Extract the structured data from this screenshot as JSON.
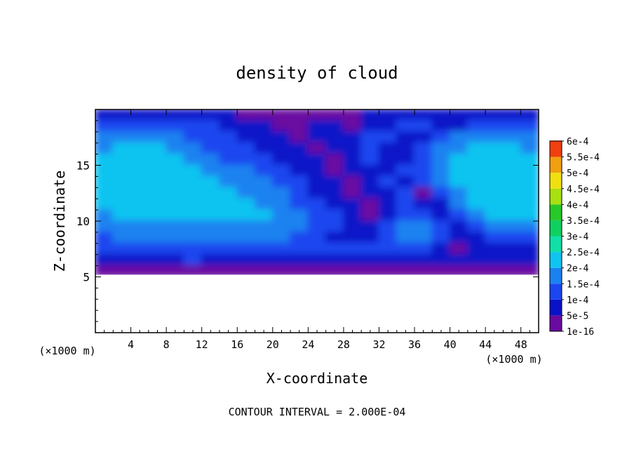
{
  "chart_data": {
    "type": "heatmap",
    "title": "density of cloud",
    "xlabel": "X-coordinate",
    "ylabel": "Z-coordinate",
    "x_unit": "(×1000 m)",
    "y_unit": "(×1000 m)",
    "xlim": [
      0,
      50
    ],
    "ylim": [
      0,
      20
    ],
    "x_ticks": [
      4,
      8,
      12,
      16,
      20,
      24,
      28,
      32,
      36,
      40,
      44,
      48
    ],
    "y_ticks": [
      5,
      10,
      15
    ],
    "footer": "CONTOUR INTERVAL = 2.000E-04",
    "colorbar": {
      "levels": [
        "1e-16",
        "5e-5",
        "1e-4",
        "1.5e-4",
        "2e-4",
        "2.5e-4",
        "3e-4",
        "3.5e-4",
        "4e-4",
        "4.5e-4",
        "5e-4",
        "5.5e-4",
        "6e-4"
      ],
      "colors": [
        "#6a0aa0",
        "#0a12c8",
        "#1a46f0",
        "#1a82f0",
        "#10c4f0",
        "#10e0a8",
        "#10d060",
        "#28c828",
        "#a8e010",
        "#f0e010",
        "#f0a010",
        "#f04010",
        "#f09090"
      ]
    },
    "field": {
      "x_range": [
        0,
        50
      ],
      "z_range": [
        5,
        20
      ],
      "cloud_base_km": 5.2,
      "dominant_levels": [
        "1e-16",
        "5e-5",
        "1e-4",
        "1.5e-4",
        "2e-4"
      ],
      "peak_level": "2e-4",
      "rows": [
        {
          "z": 19.5,
          "values": [
            1,
            1,
            1,
            1,
            1,
            1,
            1,
            1,
            0,
            0,
            0,
            0,
            0,
            0,
            0,
            1,
            1,
            1,
            1,
            1,
            1,
            1,
            1,
            1,
            1
          ]
        },
        {
          "z": 18.5,
          "values": [
            2,
            2,
            2,
            2,
            2,
            2,
            2,
            1,
            1,
            1,
            0,
            0,
            1,
            1,
            0,
            1,
            1,
            2,
            2,
            1,
            1,
            2,
            2,
            2,
            2
          ]
        },
        {
          "z": 17.5,
          "values": [
            3,
            3,
            3,
            3,
            3,
            2,
            2,
            2,
            1,
            1,
            1,
            0,
            1,
            1,
            1,
            2,
            2,
            1,
            1,
            2,
            3,
            3,
            3,
            3,
            3
          ]
        },
        {
          "z": 16.5,
          "values": [
            3,
            4,
            4,
            4,
            3,
            3,
            2,
            2,
            2,
            1,
            1,
            1,
            0,
            1,
            1,
            2,
            1,
            1,
            2,
            3,
            3,
            4,
            4,
            4,
            3
          ]
        },
        {
          "z": 15.5,
          "values": [
            4,
            4,
            4,
            4,
            4,
            3,
            3,
            2,
            2,
            2,
            1,
            1,
            1,
            0,
            1,
            2,
            1,
            1,
            2,
            3,
            4,
            4,
            4,
            4,
            4
          ]
        },
        {
          "z": 14.5,
          "values": [
            4,
            4,
            4,
            4,
            4,
            4,
            3,
            3,
            3,
            2,
            2,
            1,
            1,
            0,
            1,
            1,
            1,
            2,
            2,
            3,
            4,
            4,
            4,
            4,
            4
          ]
        },
        {
          "z": 13.5,
          "values": [
            4,
            4,
            4,
            4,
            4,
            4,
            4,
            3,
            3,
            3,
            2,
            2,
            1,
            1,
            0,
            1,
            2,
            1,
            2,
            3,
            4,
            4,
            4,
            4,
            4
          ]
        },
        {
          "z": 12.5,
          "values": [
            4,
            4,
            4,
            4,
            4,
            4,
            4,
            4,
            3,
            3,
            3,
            2,
            1,
            1,
            0,
            1,
            1,
            2,
            0,
            2,
            3,
            4,
            4,
            4,
            4
          ]
        },
        {
          "z": 11.5,
          "values": [
            4,
            4,
            4,
            4,
            4,
            4,
            4,
            4,
            4,
            3,
            3,
            2,
            2,
            1,
            1,
            0,
            1,
            2,
            1,
            1,
            3,
            4,
            4,
            4,
            4
          ]
        },
        {
          "z": 10.5,
          "values": [
            3,
            4,
            4,
            4,
            4,
            4,
            4,
            4,
            4,
            4,
            3,
            3,
            2,
            2,
            1,
            0,
            1,
            2,
            2,
            1,
            2,
            3,
            4,
            4,
            4
          ]
        },
        {
          "z": 9.5,
          "values": [
            3,
            3,
            3,
            3,
            3,
            3,
            3,
            3,
            3,
            3,
            3,
            3,
            2,
            2,
            1,
            1,
            2,
            3,
            3,
            2,
            1,
            2,
            3,
            3,
            3
          ]
        },
        {
          "z": 8.5,
          "values": [
            2,
            3,
            3,
            3,
            3,
            3,
            3,
            3,
            3,
            3,
            3,
            2,
            2,
            1,
            1,
            1,
            2,
            3,
            3,
            2,
            1,
            1,
            2,
            2,
            2
          ]
        },
        {
          "z": 7.5,
          "values": [
            2,
            2,
            2,
            2,
            2,
            2,
            2,
            2,
            2,
            2,
            2,
            2,
            2,
            2,
            2,
            2,
            2,
            2,
            2,
            1,
            0,
            1,
            1,
            1,
            1
          ]
        },
        {
          "z": 6.5,
          "values": [
            1,
            1,
            1,
            1,
            1,
            2,
            1,
            1,
            1,
            1,
            1,
            1,
            1,
            1,
            1,
            1,
            1,
            1,
            1,
            1,
            1,
            1,
            1,
            1,
            1
          ]
        },
        {
          "z": 5.5,
          "values": [
            0,
            0,
            0,
            0,
            0,
            0,
            0,
            0,
            0,
            0,
            0,
            0,
            0,
            0,
            0,
            0,
            0,
            0,
            0,
            0,
            0,
            0,
            0,
            0,
            0
          ]
        }
      ]
    }
  }
}
